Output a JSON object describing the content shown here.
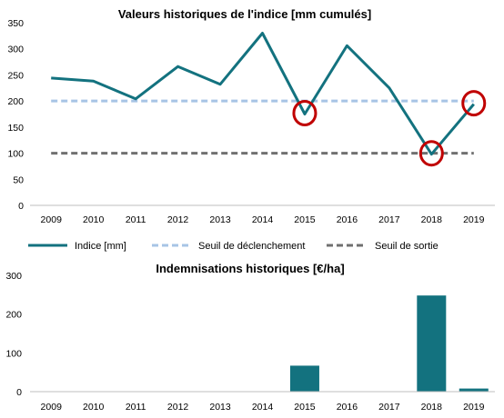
{
  "chart_data": [
    {
      "type": "line",
      "title": "Valeurs historiques de l'indice [mm cumulés]",
      "xlabel": "",
      "ylabel": "",
      "categories": [
        "2009",
        "2010",
        "2011",
        "2012",
        "2013",
        "2014",
        "2015",
        "2016",
        "2017",
        "2018",
        "2019"
      ],
      "ylim": [
        0,
        350
      ],
      "yticks": [
        0,
        50,
        100,
        150,
        200,
        250,
        300,
        350
      ],
      "grid": false,
      "legend_position": "bottom",
      "series": [
        {
          "name": "Indice [mm]",
          "style": "solid",
          "color": "#13727f",
          "values": [
            244,
            238,
            204,
            266,
            232,
            330,
            175,
            306,
            225,
            98,
            194
          ]
        },
        {
          "name": "Seuil de déclenchement",
          "style": "dashed",
          "color": "#a7c4e5",
          "values": [
            200,
            200,
            200,
            200,
            200,
            200,
            200,
            200,
            200,
            200,
            200
          ]
        },
        {
          "name": "Seuil de sortie",
          "style": "dashed",
          "color": "#707070",
          "values": [
            100,
            100,
            100,
            100,
            100,
            100,
            100,
            100,
            100,
            100,
            100
          ]
        }
      ],
      "highlights": {
        "color": "#c00000",
        "categories": [
          "2015",
          "2018",
          "2019"
        ]
      }
    },
    {
      "type": "bar",
      "title": "Indemnisations historiques [€/ha]",
      "xlabel": "",
      "ylabel": "",
      "categories": [
        "2009",
        "2010",
        "2011",
        "2012",
        "2013",
        "2014",
        "2015",
        "2016",
        "2017",
        "2018",
        "2019"
      ],
      "values": [
        0,
        0,
        0,
        0,
        0,
        0,
        67,
        0,
        0,
        248,
        8
      ],
      "ylim": [
        0,
        300
      ],
      "yticks": [
        0,
        100,
        200,
        300
      ],
      "grid": false,
      "color": "#13727f"
    }
  ]
}
